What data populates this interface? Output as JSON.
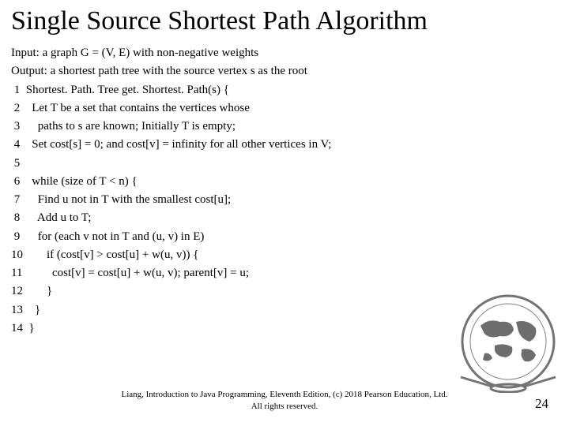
{
  "title": "Single Source Shortest Path Algorithm",
  "input_line": "Input: a graph G = (V, E) with non-negative weights",
  "output_line": "Output: a shortest path tree with the source vertex s as the root",
  "code": [
    {
      "n": " 1",
      "t": "Shortest. Path. Tree get. Shortest. Path(s) {"
    },
    {
      "n": " 2",
      "t": "  Let T be a set that contains the vertices whose"
    },
    {
      "n": " 3",
      "t": "    paths to s are known; Initially T is empty;"
    },
    {
      "n": " 4",
      "t": "  Set cost[s] = 0; and cost[v] = infinity for all other vertices in V;"
    },
    {
      "n": " 5",
      "t": ""
    },
    {
      "n": " 6",
      "t": "  while (size of T < n) {"
    },
    {
      "n": " 7",
      "t": "    Find u not in T with the smallest cost[u];"
    },
    {
      "n": " 8",
      "t": "    Add u to T;"
    },
    {
      "n": " 9",
      "t": "    for (each v not in T and (u, v) in E)"
    },
    {
      "n": "10",
      "t": "      if (cost[v] > cost[u] + w(u, v)) {"
    },
    {
      "n": "11",
      "t": "        cost[v] = cost[u] + w(u, v); parent[v] = u;"
    },
    {
      "n": "12",
      "t": "      }"
    },
    {
      "n": "13",
      "t": "  }"
    },
    {
      "n": "14",
      "t": "}"
    }
  ],
  "footer1": "Liang, Introduction to Java Programming, Eleventh Edition, (c) 2018 Pearson Education, Ltd.",
  "footer2": "All rights reserved.",
  "page_num": "24",
  "globe": {
    "ring_stroke": "#606060",
    "land_fill": "#5a5a5a",
    "ocean_fill": "#ffffff"
  }
}
